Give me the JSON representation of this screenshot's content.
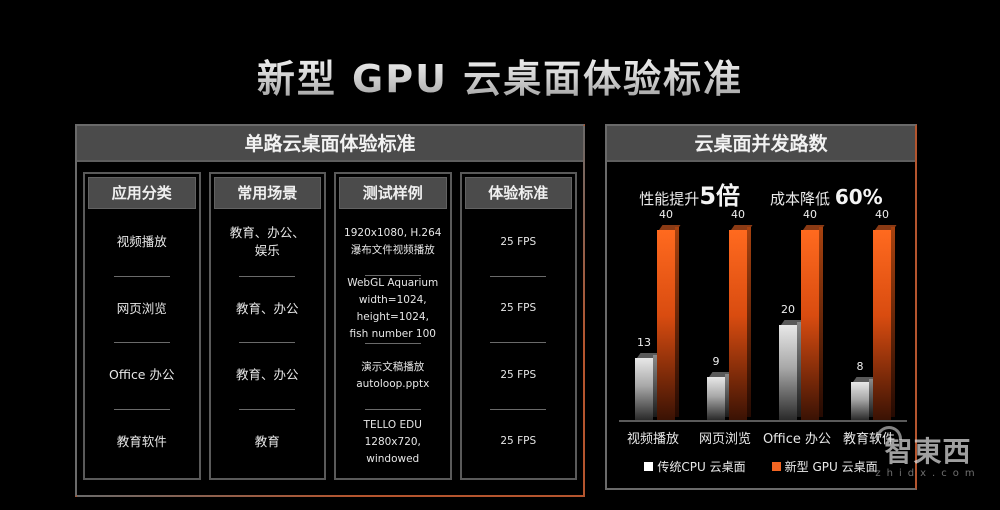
{
  "title": "新型 GPU 云桌面体验标准",
  "left_panel": {
    "header": "单路云桌面体验标准",
    "columns": [
      {
        "header": "应用分类",
        "cells": [
          "视频播放",
          "网页浏览",
          "Office 办公",
          "教育软件"
        ]
      },
      {
        "header": "常用场景",
        "cells": [
          "教育、办公、\n娱乐",
          "教育、办公",
          "教育、办公",
          "教育"
        ]
      },
      {
        "header": "测试样例",
        "cells": [
          "1920x1080, H.264\n瀑布文件视频播放",
          "WebGL Aquarium\nwidth=1024, height=1024,\nfish number 100",
          "演示文稿播放\nautoloop.pptx",
          "TELLO EDU\n1280x720, windowed"
        ]
      },
      {
        "header": "体验标准",
        "cells": [
          "25 FPS",
          "25 FPS",
          "25 FPS",
          "25 FPS"
        ]
      }
    ]
  },
  "right_panel": {
    "header": "云桌面并发路数",
    "kpis": [
      {
        "label": "性能提升",
        "value": "5倍"
      },
      {
        "label": "成本降低",
        "value": "60%"
      }
    ],
    "legend": [
      {
        "label": "传统CPU 云桌面",
        "color": "#ffffff"
      },
      {
        "label": "新型 GPU 云桌面",
        "color": "#f26522"
      }
    ]
  },
  "chart_data": {
    "type": "bar",
    "title": "云桌面并发路数",
    "categories": [
      "视频播放",
      "网页浏览",
      "Office 办公",
      "教育软件"
    ],
    "series": [
      {
        "name": "传统CPU 云桌面",
        "color": "#d9d9d9",
        "values": [
          13,
          9,
          20,
          8
        ]
      },
      {
        "name": "新型 GPU 云桌面",
        "color": "#f26522",
        "values": [
          40,
          40,
          40,
          40
        ]
      }
    ],
    "annotations": [
      "性能提升5倍",
      "成本降低 60%"
    ],
    "xlabel": "",
    "ylabel": "",
    "ylim": [
      0,
      40
    ],
    "grid": false,
    "legend_position": "bottom"
  },
  "watermark": {
    "main": "智東西",
    "sub": "zhidx.com"
  }
}
